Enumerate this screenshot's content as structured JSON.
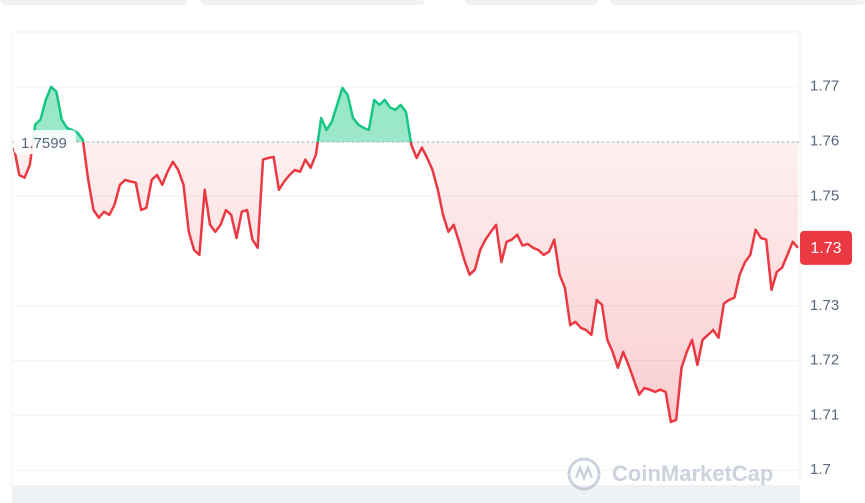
{
  "chart_data": {
    "type": "line",
    "brand": "CoinMarketCap",
    "price_badge": "1.73",
    "baseline": 1.7599,
    "up_color": "#16c784",
    "down_color": "#ea3943",
    "ylim": [
      1.6973,
      1.78
    ],
    "yticks": [
      1.7,
      1.71,
      1.72,
      1.73,
      1.75,
      1.76,
      1.77
    ],
    "grid": true,
    "values": [
      1.7589,
      1.7539,
      1.7534,
      1.7558,
      1.7631,
      1.764,
      1.7676,
      1.77,
      1.7691,
      1.764,
      1.7625,
      1.7621,
      1.7616,
      1.7603,
      1.753,
      1.7475,
      1.7461,
      1.7472,
      1.7466,
      1.7485,
      1.7521,
      1.753,
      1.7527,
      1.7525,
      1.7475,
      1.7479,
      1.753,
      1.7539,
      1.7521,
      1.7545,
      1.7563,
      1.7548,
      1.7521,
      1.7435,
      1.7402,
      1.7393,
      1.7512,
      1.7448,
      1.7435,
      1.7448,
      1.7475,
      1.7466,
      1.7424,
      1.7472,
      1.7475,
      1.7421,
      1.7406,
      1.7567,
      1.757,
      1.7572,
      1.7512,
      1.7527,
      1.7539,
      1.7548,
      1.7545,
      1.7567,
      1.7552,
      1.7576,
      1.7643,
      1.7621,
      1.7636,
      1.7667,
      1.7698,
      1.7685,
      1.7643,
      1.7631,
      1.7625,
      1.7621,
      1.7676,
      1.7667,
      1.7676,
      1.7662,
      1.7658,
      1.7667,
      1.7654,
      1.7594,
      1.757,
      1.7589,
      1.757,
      1.7548,
      1.7512,
      1.7466,
      1.7435,
      1.7448,
      1.7417,
      1.7384,
      1.7357,
      1.7366,
      1.7402,
      1.7421,
      1.7435,
      1.7448,
      1.738,
      1.7417,
      1.7421,
      1.743,
      1.741,
      1.7413,
      1.7406,
      1.7402,
      1.7393,
      1.7399,
      1.7421,
      1.7357,
      1.7333,
      1.7265,
      1.7271,
      1.726,
      1.7256,
      1.7247,
      1.7311,
      1.7302,
      1.7238,
      1.7216,
      1.7187,
      1.7216,
      1.7192,
      1.7165,
      1.7138,
      1.715,
      1.7147,
      1.7143,
      1.7147,
      1.7143,
      1.7088,
      1.7092,
      1.7187,
      1.7216,
      1.7238,
      1.7192,
      1.7238,
      1.7247,
      1.7256,
      1.7242,
      1.7304,
      1.7311,
      1.7315,
      1.7357,
      1.738,
      1.7393,
      1.7439,
      1.7424,
      1.7421,
      1.7329,
      1.7362,
      1.737,
      1.7393,
      1.7417,
      1.7406
    ]
  }
}
